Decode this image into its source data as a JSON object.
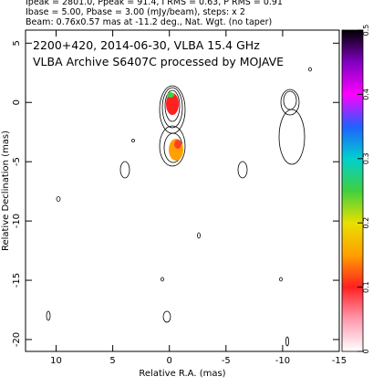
{
  "chart_data": {
    "type": "contour",
    "header": [
      "Ipeak = 2801.0, Ppeak = 91.4, I RMS = 0.63, P RMS = 0.91",
      "Ibase = 5.00, Pbase = 3.00 (mJy/beam), steps: x 2",
      "Beam: 0.76x0.57 mas at -11.2 deg., Nat. Wgt. (no taper)"
    ],
    "annotations": [
      "2200+420, 2014-06-30, VLBA 15.4 GHz",
      "VLBA Archive S6407C processed by MOJAVE"
    ],
    "xlabel": "Relative R.A. (mas)",
    "ylabel": "Relative Declination (mas)",
    "xlim": [
      12.7,
      -15
    ],
    "xticks": [
      10,
      5,
      0,
      -5,
      -10,
      -15
    ],
    "ylim": [
      -21,
      6.1
    ],
    "yticks": [
      5,
      0,
      -5,
      -10,
      -15,
      -20
    ],
    "clim": [
      0,
      0.5
    ],
    "cticks": [
      0,
      0.1,
      0.2,
      0.3,
      0.4,
      0.5
    ]
  }
}
